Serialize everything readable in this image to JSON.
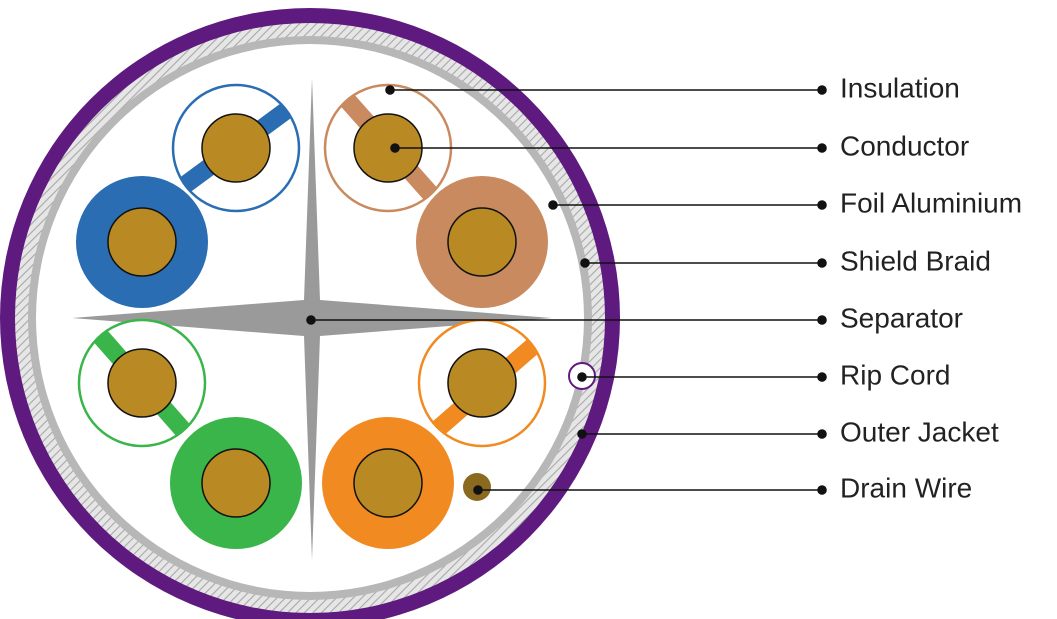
{
  "callouts": [
    {
      "label": "Insulation"
    },
    {
      "label": "Conductor"
    },
    {
      "label": "Foil Aluminium"
    },
    {
      "label": "Shield Braid"
    },
    {
      "label": "Separator"
    },
    {
      "label": "Rip Cord"
    },
    {
      "label": "Outer Jacket"
    },
    {
      "label": "Drain Wire"
    }
  ],
  "colors": {
    "outer_jacket": "#5e1a7e",
    "shield_braid": "#bdbdbd",
    "foil": "#b7b7b7",
    "separator": "#9a9a9a",
    "conductor": "#b98a23",
    "drain_wire": "#8a6a1f",
    "pair_blue": "#2a6db3",
    "pair_brown": "#c98a60",
    "pair_green": "#3ab54a",
    "pair_orange": "#f18a21",
    "leader_line": "#111111"
  },
  "pairs": [
    "blue",
    "brown",
    "green",
    "orange"
  ]
}
